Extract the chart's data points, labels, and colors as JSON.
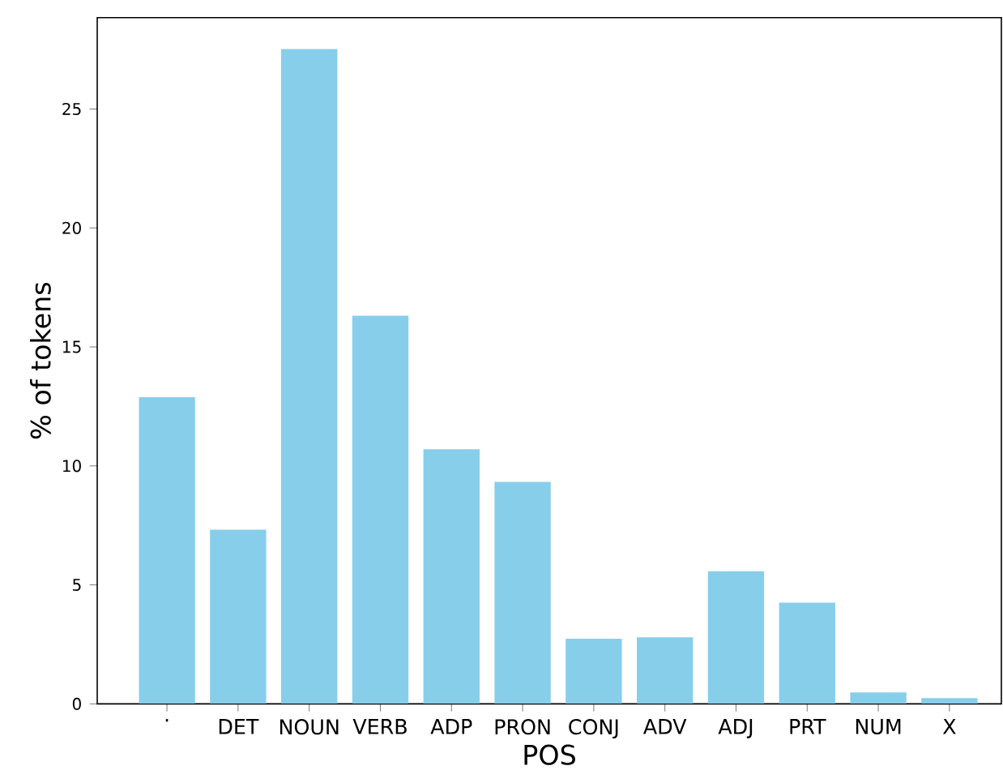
{
  "chart_data": {
    "type": "bar",
    "xlabel": "POS",
    "ylabel": "% of tokens",
    "categories": [
      ".",
      "DET",
      "NOUN",
      "VERB",
      "ADP",
      "PRON",
      "CONJ",
      "ADV",
      "ADJ",
      "PRT",
      "NUM",
      "X"
    ],
    "values": [
      12.89,
      7.32,
      27.52,
      16.31,
      10.7,
      9.33,
      2.74,
      2.8,
      5.57,
      4.25,
      0.48,
      0.24
    ],
    "color": "#87ceeb",
    "ylim": [
      0,
      28.84
    ],
    "yticks": [
      0,
      5,
      10,
      15,
      20,
      25
    ]
  }
}
